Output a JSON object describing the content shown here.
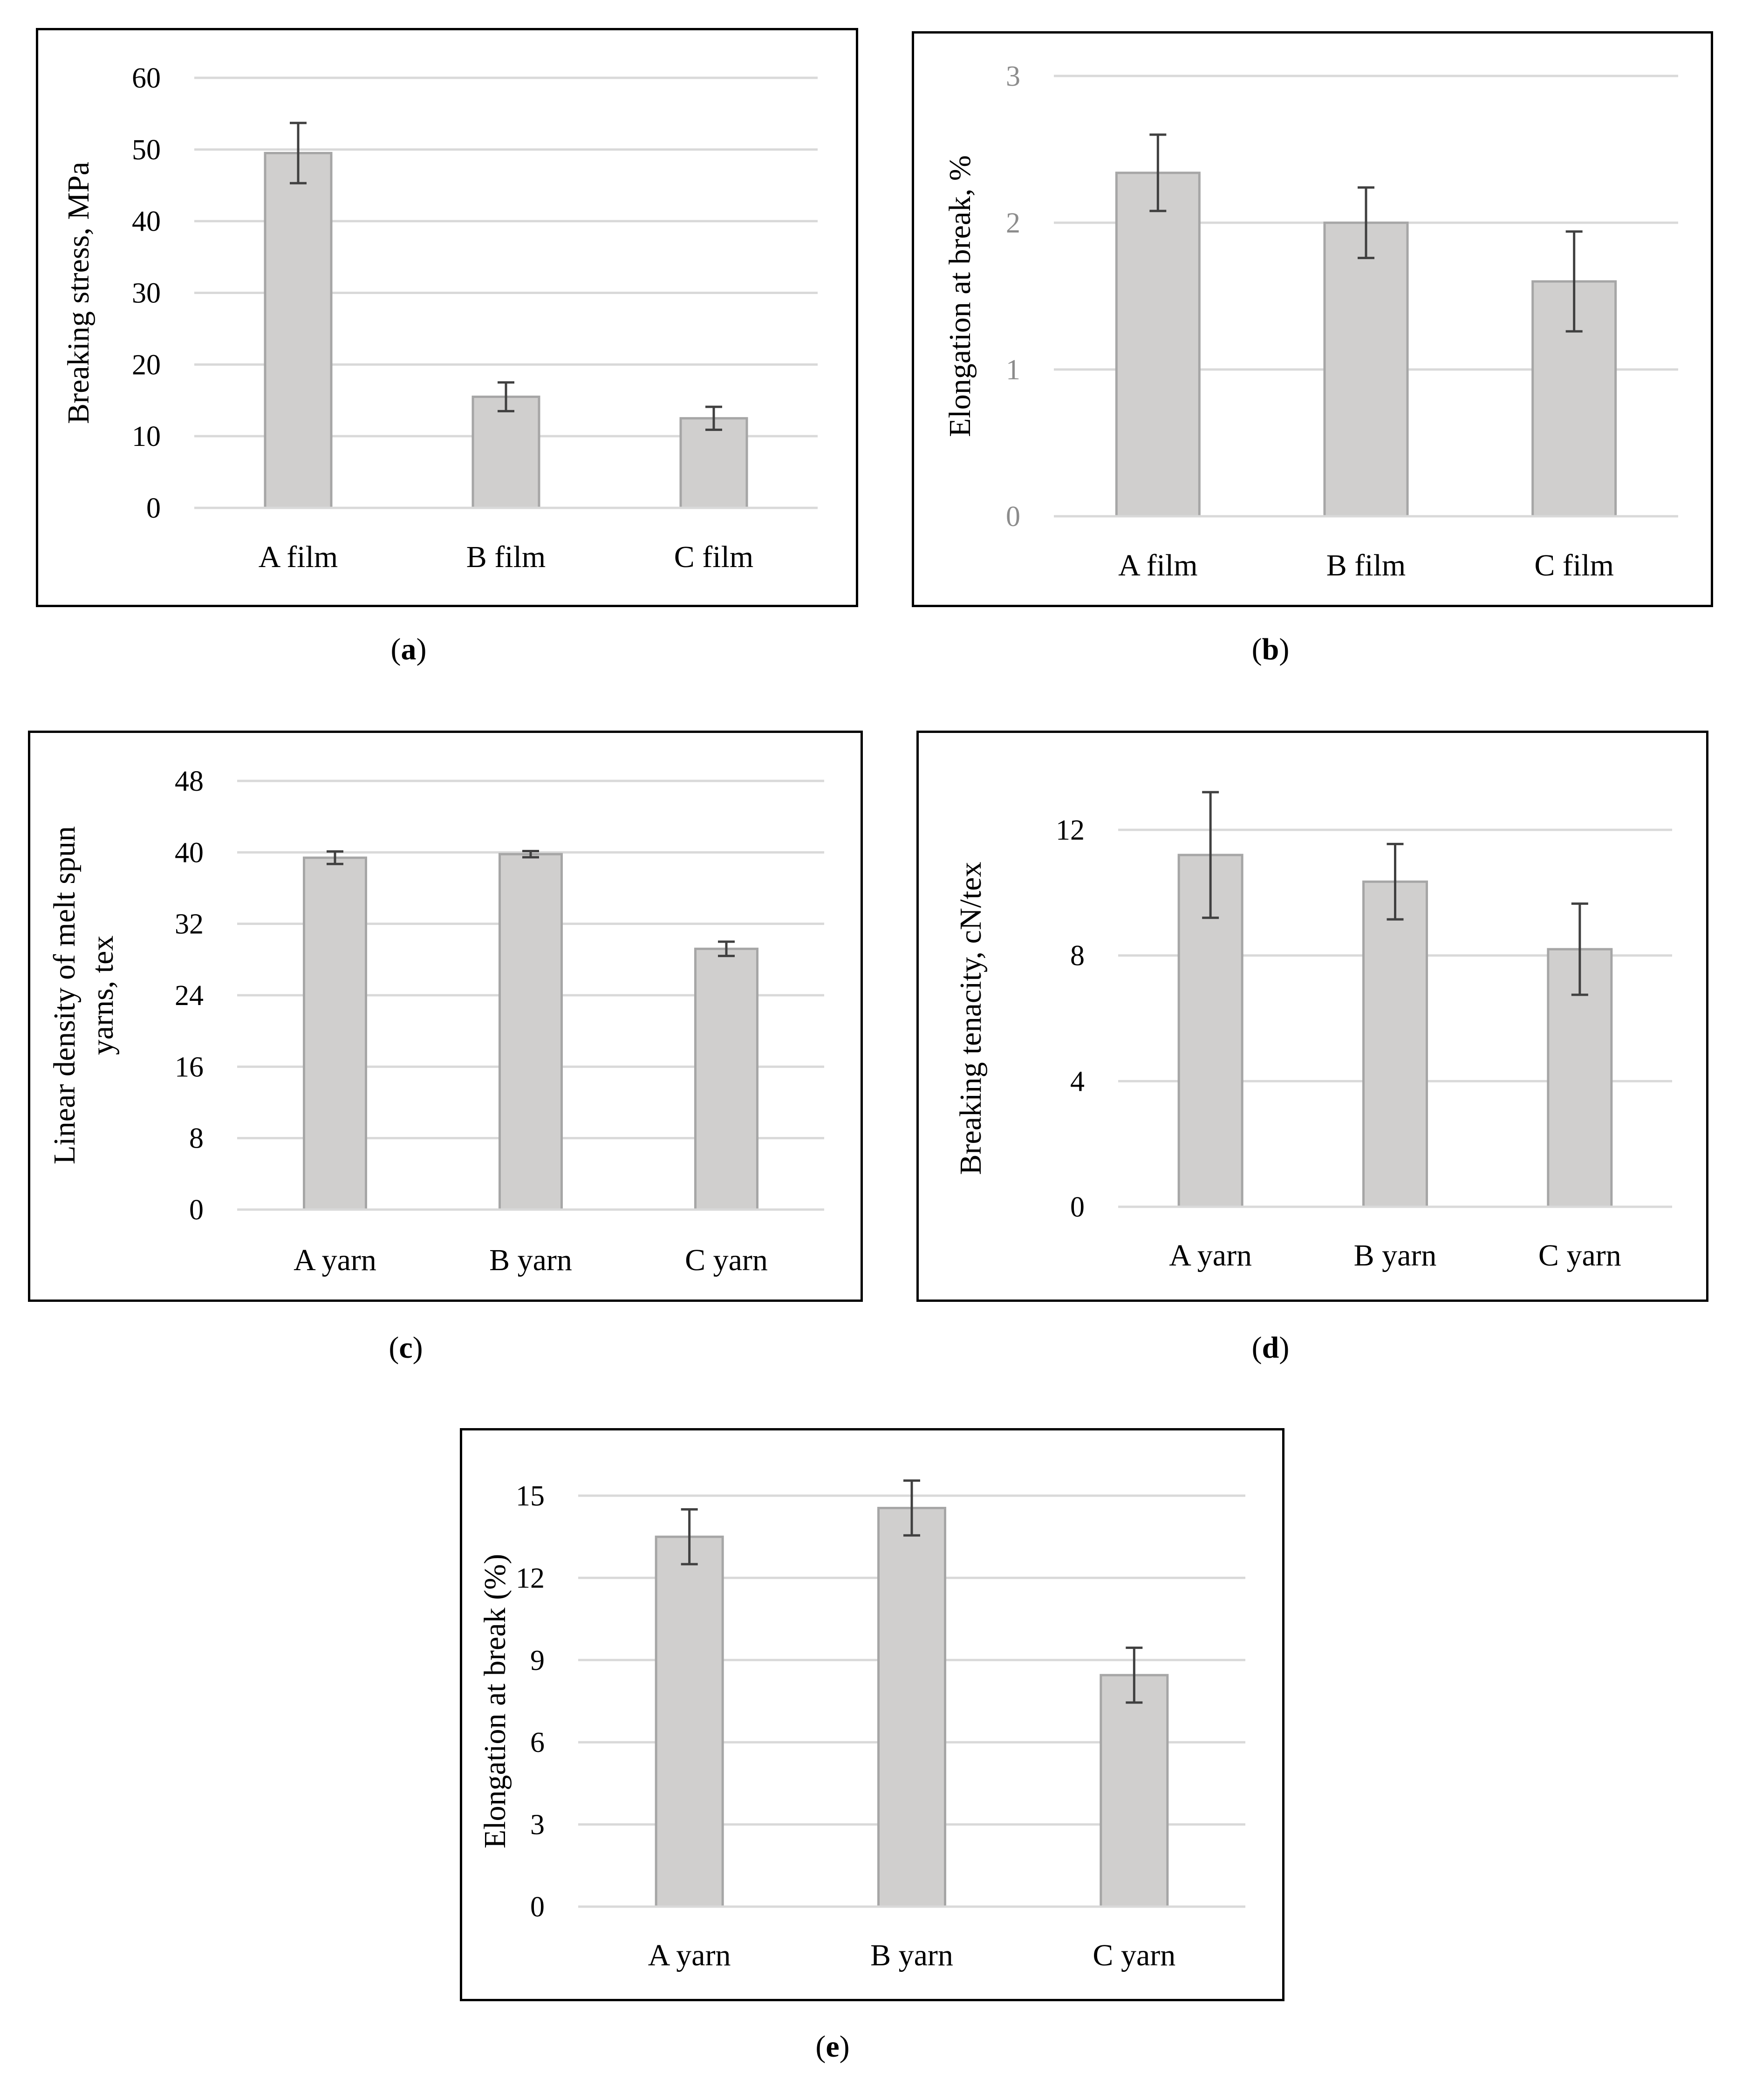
{
  "colors": {
    "bar_fill": "#d0cfce",
    "bar_stroke": "#a6a6a6",
    "grid": "#d9d9d9",
    "error_bar": "#404040",
    "text": "#000000",
    "tick_muted": "#8c8c8c"
  },
  "chart_data": [
    {
      "type": "bar",
      "caption_letter": "a",
      "categories": [
        "A film",
        "B film",
        "C film"
      ],
      "values": [
        49.5,
        15.5,
        12.5
      ],
      "errors": [
        4.2,
        2.0,
        1.6
      ],
      "ylabel": "Breaking stress, MPa",
      "ylim": [
        0,
        60
      ],
      "yticks": [
        0,
        10,
        20,
        30,
        40,
        50,
        60
      ],
      "grid": true
    },
    {
      "type": "bar",
      "caption_letter": "b",
      "categories": [
        "A film",
        "B film",
        "C film"
      ],
      "values": [
        2.34,
        2.0,
        1.6
      ],
      "errors": [
        0.26,
        0.24,
        0.34
      ],
      "ylabel": "Elongation at break, %",
      "ylim": [
        0,
        3
      ],
      "yticks": [
        0,
        1,
        2,
        3
      ],
      "grid": true
    },
    {
      "type": "bar",
      "caption_letter": "c",
      "categories": [
        "A yarn",
        "B yarn",
        "C yarn"
      ],
      "values": [
        39.4,
        39.8,
        29.2
      ],
      "errors": [
        0.7,
        0.35,
        0.8
      ],
      "ylabel": "Linear density of melt spun yarns, tex",
      "ylabel_lines": [
        "Linear density of melt spun",
        "yarns, tex"
      ],
      "ylim": [
        0,
        48
      ],
      "yticks": [
        0,
        8,
        16,
        24,
        32,
        40,
        48
      ],
      "grid": true
    },
    {
      "type": "bar",
      "caption_letter": "d",
      "categories": [
        "A yarn",
        "B yarn",
        "C yarn"
      ],
      "values": [
        11.2,
        10.35,
        8.2
      ],
      "errors": [
        2.0,
        1.2,
        1.45
      ],
      "ylabel": "Breaking tenacity, cN/tex",
      "ylim": [
        0,
        12
      ],
      "yticks": [
        0,
        4,
        8,
        12
      ],
      "grid": true
    },
    {
      "type": "bar",
      "caption_letter": "e",
      "categories": [
        "A yarn",
        "B yarn",
        "C yarn"
      ],
      "values": [
        13.5,
        14.55,
        8.45
      ],
      "errors": [
        1.0,
        1.0,
        1.0
      ],
      "ylabel": "Elongation at break (%)",
      "ylim": [
        0,
        15
      ],
      "yticks": [
        0,
        3,
        6,
        9,
        12,
        15
      ],
      "grid": true
    }
  ]
}
